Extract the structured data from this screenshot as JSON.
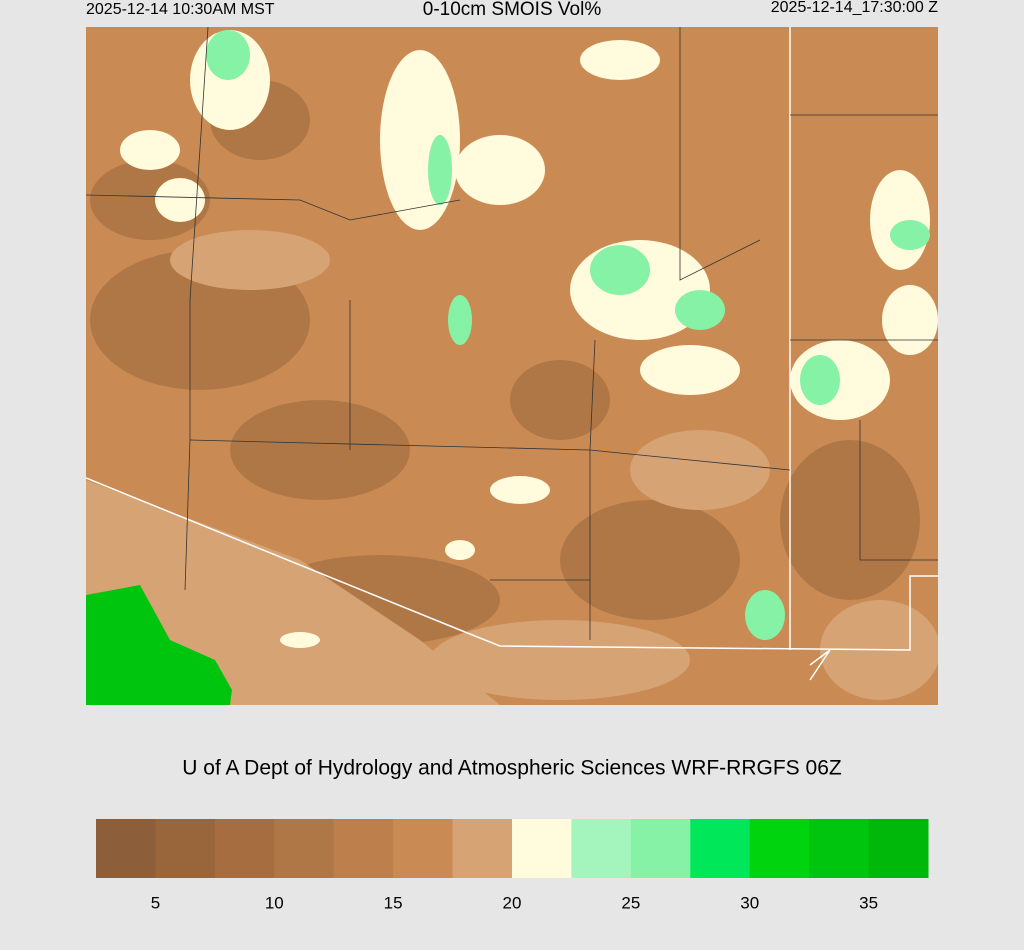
{
  "header": {
    "left": "2025-12-14 10:30AM MST",
    "title": "0-10cm SMOIS Vol%",
    "right": "2025-12-14_17:30:00 Z"
  },
  "credit": "U of A Dept of Hydrology and Atmospheric Sciences WRF-RRGFS 06Z",
  "colorbar": {
    "colors": [
      "#8c5f3a",
      "#99653b",
      "#a56d40",
      "#b07746",
      "#bd804c",
      "#c98b53",
      "#d6a374",
      "#fffbdc",
      "#a3f5bd",
      "#86f2a5",
      "#00e85a",
      "#00d40f",
      "#00c50e",
      "#00b80a"
    ],
    "lim": [
      2.5,
      37.5
    ],
    "ticks": [
      5,
      10,
      15,
      20,
      25,
      30,
      35
    ]
  }
}
